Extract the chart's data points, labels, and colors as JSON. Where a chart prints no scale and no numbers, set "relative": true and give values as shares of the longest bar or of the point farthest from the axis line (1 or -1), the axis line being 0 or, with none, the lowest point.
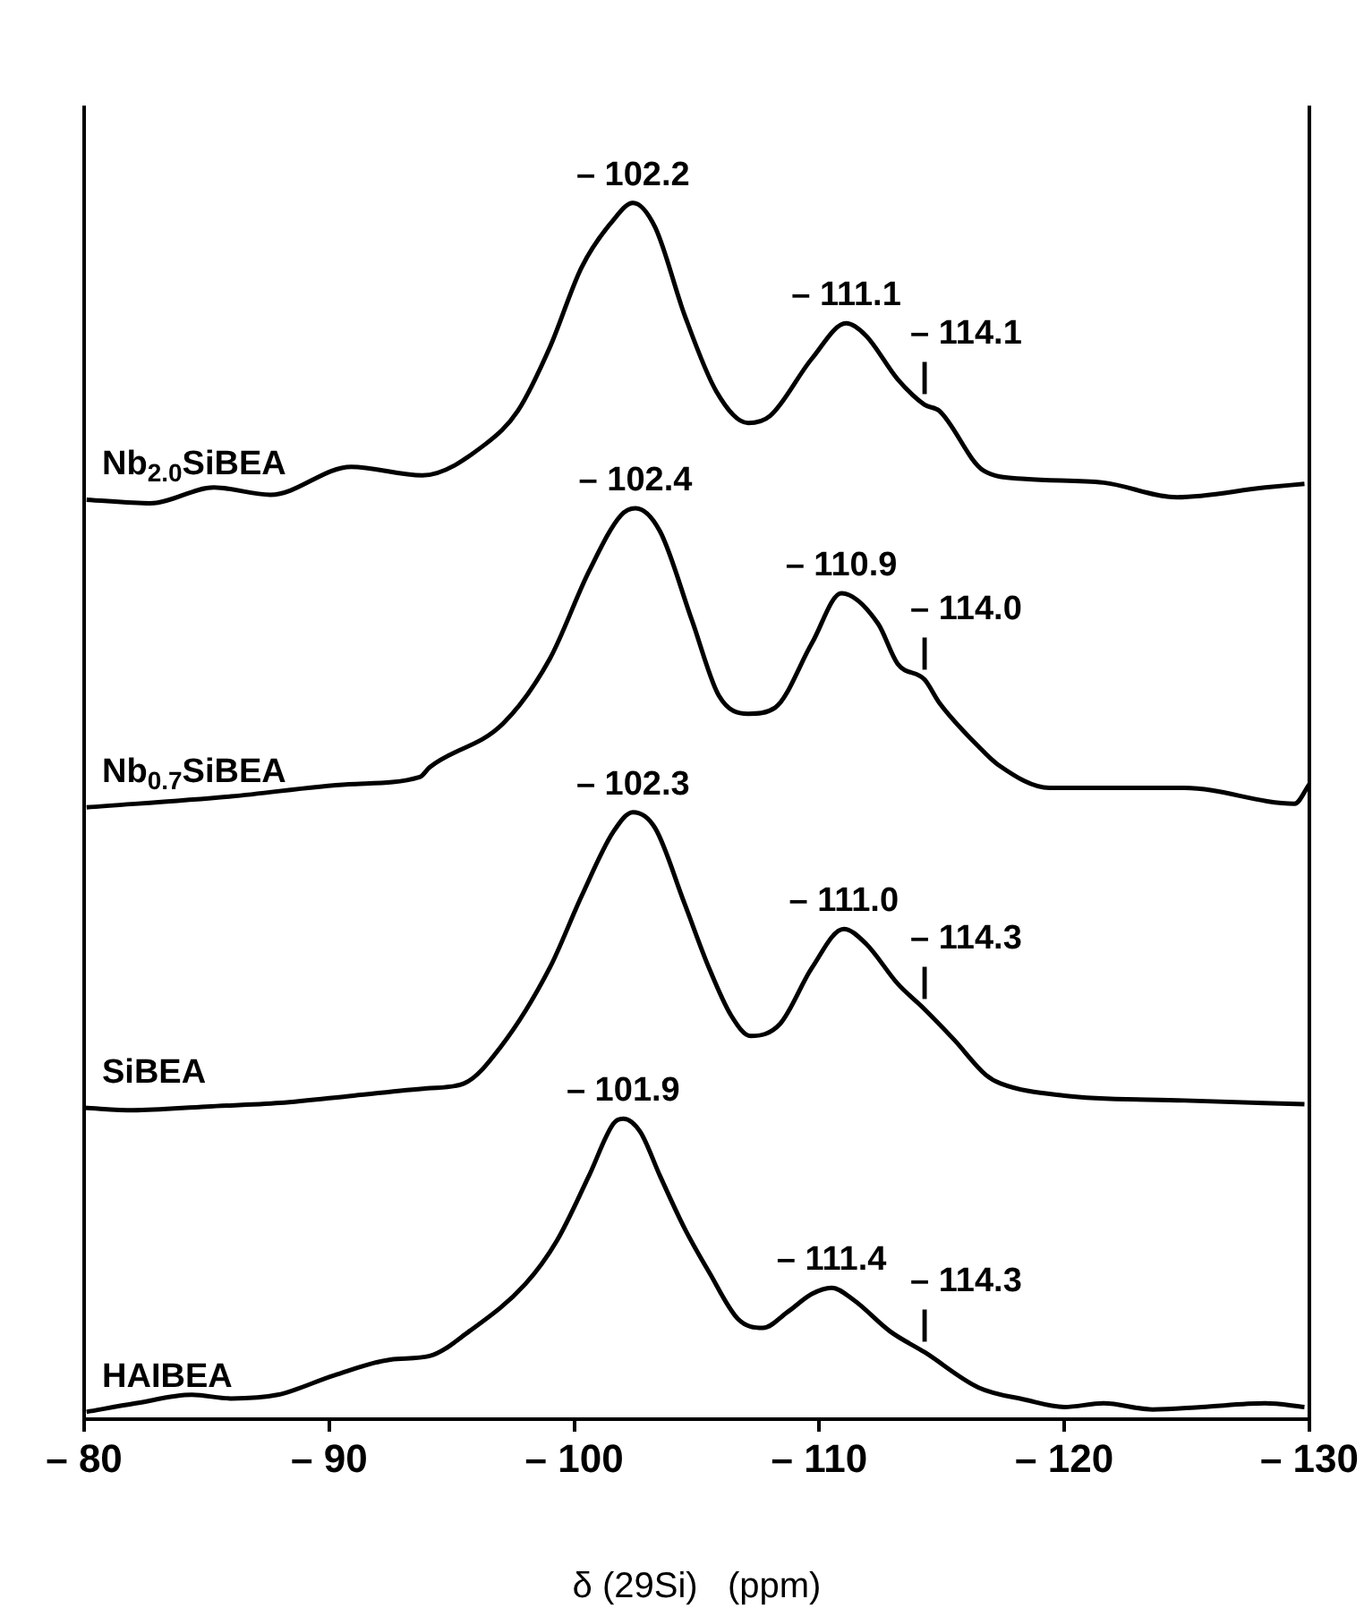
{
  "chart_data": {
    "type": "line",
    "relative": true,
    "xlabel": "δ (29Si)   (ppm)",
    "xlim": [
      -80,
      -130
    ],
    "xticks": [
      {
        "value": -80,
        "label": "– 80"
      },
      {
        "value": -90,
        "label": "– 90"
      },
      {
        "value": -100,
        "label": "– 100"
      },
      {
        "value": -110,
        "label": "– 110"
      },
      {
        "value": -120,
        "label": "– 120"
      },
      {
        "value": -130,
        "label": "– 130"
      }
    ],
    "grid": false,
    "legend": false,
    "marker": "none",
    "line_style": "solid",
    "series": [
      {
        "name": "Nb$_{2.0}$SiBEA",
        "color": "#000000",
        "x": [
          -80.1,
          -82.7,
          -85.3,
          -87.6,
          -90.9,
          -93.8,
          -96.4,
          -97.7,
          -99.0,
          -100.3,
          -101.6,
          -102.4,
          -103.3,
          -104.5,
          -105.8,
          -107.1,
          -108.0,
          -109.7,
          -111.1,
          -111.9,
          -113.2,
          -114.3,
          -114.9,
          -116.7,
          -118.4,
          -121.6,
          -124.6,
          -128.2,
          -129.8
        ],
        "values": [
          0.756,
          0.753,
          0.766,
          0.76,
          0.783,
          0.776,
          0.802,
          0.829,
          0.881,
          0.947,
          0.986,
          1,
          0.98,
          0.908,
          0.845,
          0.819,
          0.825,
          0.872,
          0.901,
          0.891,
          0.855,
          0.834,
          0.829,
          0.78,
          0.773,
          0.77,
          0.758,
          0.766,
          0.769
        ]
      },
      {
        "name": "Nb$_{0.7}$SiBEA",
        "color": "#000000",
        "x": [
          -80.1,
          -86.0,
          -90.8,
          -93.7,
          -94.1,
          -97.1,
          -99.0,
          -100.6,
          -101.9,
          -102.5,
          -103.5,
          -104.8,
          -105.9,
          -107.1,
          -108.2,
          -109.7,
          -110.9,
          -112.4,
          -113.2,
          -114.3,
          -114.9,
          -116.5,
          -117.3,
          -119.4,
          -124.9,
          -129.4,
          -130.0
        ],
        "values": [
          0.503,
          0.512,
          0.522,
          0.528,
          0.536,
          0.572,
          0.625,
          0.697,
          0.743,
          0.749,
          0.73,
          0.657,
          0.595,
          0.58,
          0.585,
          0.638,
          0.679,
          0.654,
          0.621,
          0.608,
          0.589,
          0.553,
          0.538,
          0.519,
          0.519,
          0.506,
          0.522
        ]
      },
      {
        "name": "SiBEA",
        "color": "#000000",
        "x": [
          -80.0,
          -82.0,
          -85.0,
          -88.0,
          -91.0,
          -94.0,
          -95.5,
          -97.0,
          -99.0,
          -100.3,
          -101.6,
          -102.4,
          -103.3,
          -104.5,
          -105.5,
          -106.4,
          -107.2,
          -108.4,
          -109.7,
          -111.0,
          -111.9,
          -113.2,
          -114.3,
          -115.5,
          -116.8,
          -117.4,
          -120.0,
          -124.9,
          -129.8
        ],
        "values": [
          0.256,
          0.254,
          0.257,
          0.26,
          0.266,
          0.272,
          0.276,
          0.306,
          0.371,
          0.43,
          0.483,
          0.499,
          0.486,
          0.424,
          0.371,
          0.332,
          0.315,
          0.325,
          0.371,
          0.403,
          0.391,
          0.358,
          0.337,
          0.312,
          0.283,
          0.276,
          0.266,
          0.262,
          0.259
        ]
      },
      {
        "name": "HAIBEA",
        "color": "#000000",
        "x": [
          -80.1,
          -82.1,
          -84.4,
          -86.0,
          -87.9,
          -90.2,
          -92.5,
          -94.1,
          -95.7,
          -98.0,
          -99.3,
          -100.6,
          -101.6,
          -102.0,
          -102.7,
          -103.5,
          -104.5,
          -105.5,
          -106.7,
          -107.7,
          -108.7,
          -109.7,
          -110.5,
          -111.4,
          -112.9,
          -114.3,
          -116.5,
          -118.4,
          -120.0,
          -121.6,
          -123.6,
          -125.6,
          -128.2,
          -129.8
        ],
        "values": [
          0.006,
          0.013,
          0.02,
          0.017,
          0.02,
          0.036,
          0.049,
          0.052,
          0.072,
          0.111,
          0.147,
          0.2,
          0.243,
          0.247,
          0.236,
          0.2,
          0.157,
          0.121,
          0.082,
          0.075,
          0.088,
          0.103,
          0.108,
          0.098,
          0.072,
          0.055,
          0.026,
          0.016,
          0.01,
          0.013,
          0.008,
          0.01,
          0.013,
          0.01
        ]
      }
    ],
    "annotations": [
      {
        "text": "– 102.2",
        "x": -102.4,
        "y": 1
      },
      {
        "text": "– 111.1",
        "x": -111.1,
        "y": 0.901
      },
      {
        "text": "|",
        "x": -114.3,
        "y": 0.834
      },
      {
        "text": "– 114.1",
        "x": -114.3,
        "y": 0.834
      },
      {
        "text": "– 102.4",
        "x": -102.5,
        "y": 0.749
      },
      {
        "text": "– 110.9",
        "x": -110.9,
        "y": 0.679
      },
      {
        "text": "|",
        "x": -114.3,
        "y": 0.608
      },
      {
        "text": "– 114.0",
        "x": -114.3,
        "y": 0.608
      },
      {
        "text": "– 102.3",
        "x": -102.4,
        "y": 0.499
      },
      {
        "text": "– 111.0",
        "x": -111.0,
        "y": 0.403
      },
      {
        "text": "|",
        "x": -114.3,
        "y": 0.337
      },
      {
        "text": "– 114.3",
        "x": -114.3,
        "y": 0.337
      },
      {
        "text": "– 101.9",
        "x": -102.0,
        "y": 0.247
      },
      {
        "text": "– 111.4",
        "x": -110.5,
        "y": 0.108
      },
      {
        "text": "|",
        "x": -114.3,
        "y": 0.055
      },
      {
        "text": "– 114.3",
        "x": -114.3,
        "y": 0.055
      }
    ]
  }
}
